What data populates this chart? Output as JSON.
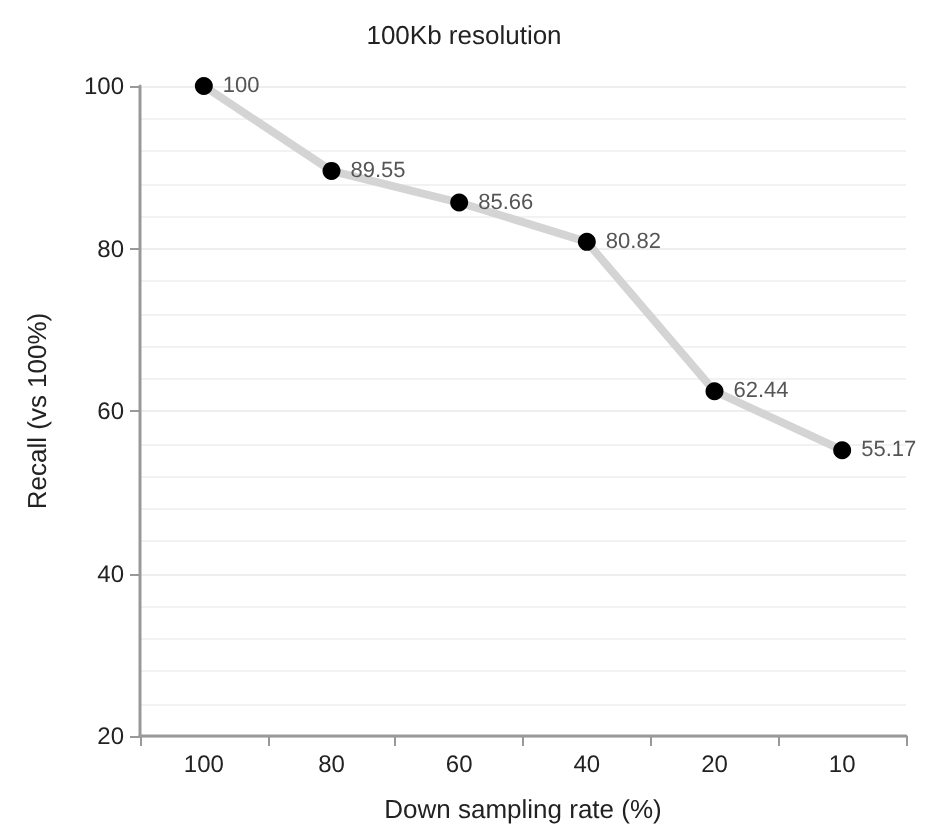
{
  "chart_data": {
    "type": "line",
    "title": "100Kb resolution",
    "xlabel": "Down sampling rate (%)",
    "ylabel": "Recall (vs 100%)",
    "categories": [
      "100",
      "80",
      "60",
      "40",
      "20",
      "10"
    ],
    "series": [
      {
        "color": "#d4d4d4",
        "colors": [
          "#000000",
          "#000000",
          "#000000",
          "#000000",
          "#000000",
          "#000000"
        ],
        "values": [
          100,
          89.55,
          85.66,
          80.82,
          62.44,
          55.17
        ]
      }
    ],
    "ylim": [
      20,
      100
    ],
    "yticks": [
      20,
      40,
      60,
      80,
      100
    ],
    "grid": true,
    "marker": "circle",
    "line_style": "solid",
    "data_labels": true
  }
}
